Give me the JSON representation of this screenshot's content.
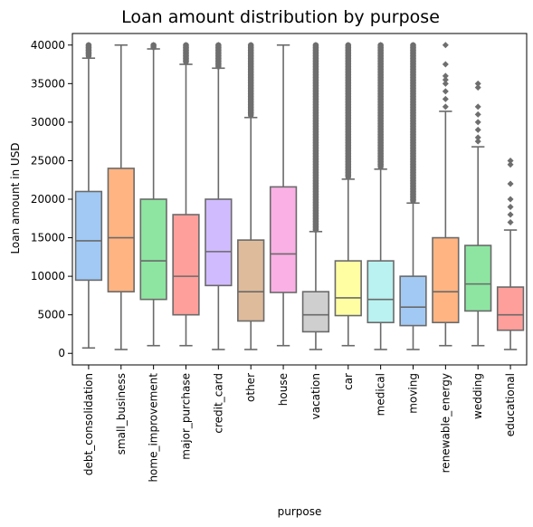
{
  "chart_data": {
    "type": "box",
    "title": "Loan amount distribution by purpose",
    "xlabel": "purpose",
    "ylabel": "Loan amount in USD",
    "ylim": [
      -1500,
      41500
    ],
    "yticks": [
      0,
      5000,
      10000,
      15000,
      20000,
      25000,
      30000,
      35000,
      40000
    ],
    "categories": [
      "debt_consolidation",
      "small_business",
      "home_improvement",
      "major_purchase",
      "credit_card",
      "other",
      "house",
      "vacation",
      "car",
      "medical",
      "moving",
      "renewable_energy",
      "wedding",
      "educational"
    ],
    "colors": [
      "#a1c9f4",
      "#ffb482",
      "#8de5a1",
      "#ff9f9b",
      "#d0bbff",
      "#debb9b",
      "#fab0e4",
      "#cfcfcf",
      "#fffea3",
      "#b9f2f0",
      "#a1c9f4",
      "#ffb482",
      "#8de5a1",
      "#ff9f9b"
    ],
    "boxes": [
      {
        "category": "debt_consolidation",
        "whisker_low": 700,
        "q1": 9500,
        "median": 14600,
        "q3": 21000,
        "whisker_high": 38300,
        "outlier_ranges": [
          [
            38600,
            40000
          ]
        ],
        "outliers": []
      },
      {
        "category": "small_business",
        "whisker_low": 500,
        "q1": 8000,
        "median": 15000,
        "q3": 24000,
        "whisker_high": 40000,
        "outlier_ranges": [],
        "outliers": []
      },
      {
        "category": "home_improvement",
        "whisker_low": 1000,
        "q1": 7000,
        "median": 12000,
        "q3": 20000,
        "whisker_high": 39500,
        "outlier_ranges": [
          [
            39700,
            40000
          ]
        ],
        "outliers": []
      },
      {
        "category": "major_purchase",
        "whisker_low": 1000,
        "q1": 5000,
        "median": 10000,
        "q3": 18000,
        "whisker_high": 37500,
        "outlier_ranges": [
          [
            37800,
            40000
          ]
        ],
        "outliers": []
      },
      {
        "category": "credit_card",
        "whisker_low": 500,
        "q1": 8800,
        "median": 13200,
        "q3": 20000,
        "whisker_high": 37000,
        "outlier_ranges": [
          [
            37200,
            40000
          ]
        ],
        "outliers": []
      },
      {
        "category": "other",
        "whisker_low": 500,
        "q1": 4200,
        "median": 8000,
        "q3": 14700,
        "whisker_high": 30600,
        "outlier_ranges": [
          [
            30900,
            40000
          ]
        ],
        "outliers": []
      },
      {
        "category": "house",
        "whisker_low": 1000,
        "q1": 7900,
        "median": 12900,
        "q3": 21600,
        "whisker_high": 40000,
        "outlier_ranges": [],
        "outliers": []
      },
      {
        "category": "vacation",
        "whisker_low": 500,
        "q1": 2800,
        "median": 5000,
        "q3": 8000,
        "whisker_high": 15800,
        "outlier_ranges": [
          [
            16000,
            40000
          ]
        ],
        "outliers": []
      },
      {
        "category": "car",
        "whisker_low": 1000,
        "q1": 4900,
        "median": 7200,
        "q3": 12000,
        "whisker_high": 22600,
        "outlier_ranges": [
          [
            22900,
            40000
          ]
        ],
        "outliers": []
      },
      {
        "category": "medical",
        "whisker_low": 500,
        "q1": 4000,
        "median": 7000,
        "q3": 12000,
        "whisker_high": 23900,
        "outlier_ranges": [
          [
            24200,
            40000
          ]
        ],
        "outliers": []
      },
      {
        "category": "moving",
        "whisker_low": 500,
        "q1": 3600,
        "median": 6000,
        "q3": 10000,
        "whisker_high": 19500,
        "outlier_ranges": [
          [
            19800,
            40000
          ]
        ],
        "outliers": []
      },
      {
        "category": "renewable_energy",
        "whisker_low": 1000,
        "q1": 4000,
        "median": 8000,
        "q3": 15000,
        "whisker_high": 31400,
        "outlier_ranges": [],
        "outliers": [
          32000,
          33000,
          34000,
          35000,
          35500,
          36000,
          37500,
          40000
        ]
      },
      {
        "category": "wedding",
        "whisker_low": 1000,
        "q1": 5500,
        "median": 9000,
        "q3": 14000,
        "whisker_high": 26800,
        "outlier_ranges": [],
        "outliers": [
          27500,
          28000,
          29000,
          30000,
          31000,
          32000,
          34500,
          35000
        ]
      },
      {
        "category": "educational",
        "whisker_low": 500,
        "q1": 3000,
        "median": 5000,
        "q3": 8600,
        "whisker_high": 16000,
        "outlier_ranges": [],
        "outliers": [
          17000,
          18000,
          19000,
          20000,
          22000,
          24500,
          25000
        ]
      }
    ],
    "box_line_color": "#6a6a6a",
    "grid": false,
    "legend": "none"
  }
}
